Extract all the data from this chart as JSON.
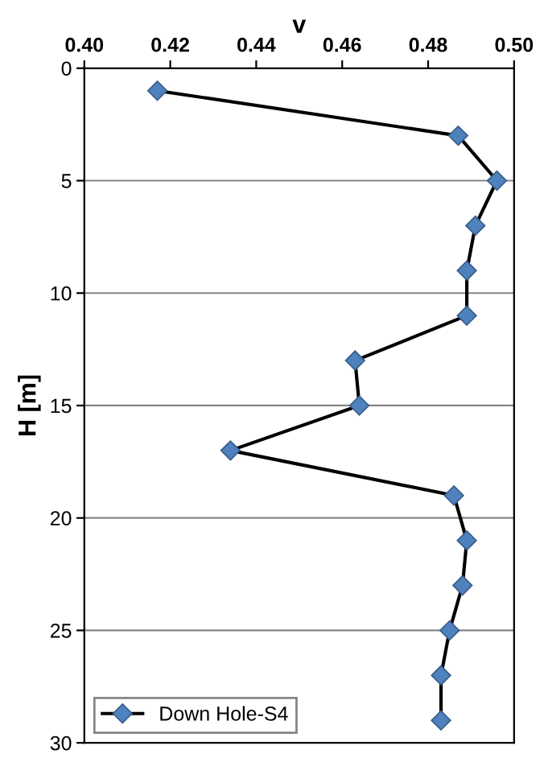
{
  "chart_data": {
    "type": "line",
    "xlabel": "v",
    "ylabel": "H [m]",
    "xlim": [
      0.4,
      0.5
    ],
    "xticks": [
      {
        "value": 0.4,
        "label": "0.40"
      },
      {
        "value": 0.42,
        "label": "0.42"
      },
      {
        "value": 0.44,
        "label": "0.44"
      },
      {
        "value": 0.46,
        "label": "0.46"
      },
      {
        "value": 0.48,
        "label": "0.48"
      },
      {
        "value": 0.5,
        "label": "0.50"
      }
    ],
    "ylim": [
      30,
      0
    ],
    "yticks": [
      0,
      5,
      10,
      15,
      20,
      25,
      30
    ],
    "grid": "y",
    "legend": "bottom left",
    "marker": "diamond",
    "line_style": "solid",
    "series": [
      {
        "name": "Down Hole-S4",
        "color": "#4f81bd",
        "x": [
          0.417,
          0.487,
          0.496,
          0.491,
          0.489,
          0.489,
          0.463,
          0.464,
          0.434,
          0.486,
          0.489,
          0.488,
          0.485,
          0.483,
          0.483
        ],
        "values": [
          1,
          3,
          5,
          7,
          9,
          11,
          13,
          15,
          17,
          19,
          21,
          23,
          25,
          27,
          29
        ]
      }
    ]
  }
}
